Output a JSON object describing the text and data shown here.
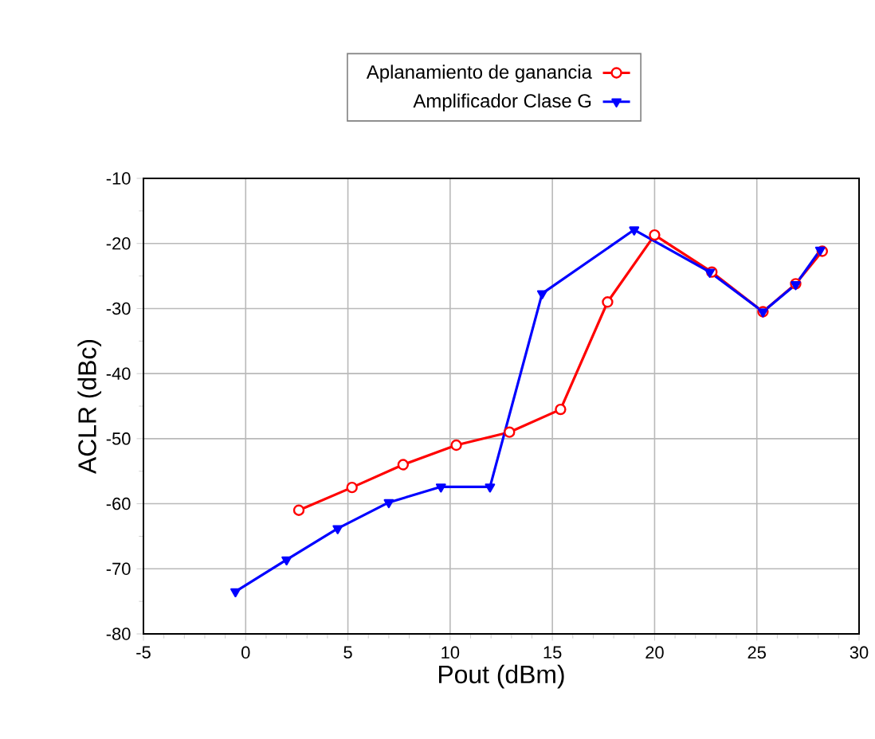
{
  "chart_data": {
    "type": "line",
    "xlabel": "Pout (dBm)",
    "ylabel": "ACLR (dBc)",
    "xlim": [
      -5,
      30
    ],
    "xticks": [
      -5,
      0,
      5,
      10,
      15,
      20,
      25,
      30
    ],
    "ylim": [
      -80,
      -10
    ],
    "yticks": [
      -80,
      -70,
      -60,
      -50,
      -40,
      -30,
      -20,
      -10
    ],
    "grid": true,
    "legend": "top",
    "series": [
      {
        "name": "Aplanamiento de ganancia",
        "color": "#ff0000",
        "marker": "circle",
        "x": [
          2.6,
          5.2,
          7.7,
          10.3,
          12.9,
          15.4,
          17.7,
          20.0,
          22.8,
          25.3,
          26.9,
          28.2
        ],
        "values": [
          -61,
          -57.5,
          -54,
          -51,
          -49,
          -45.5,
          -29,
          -18.7,
          -24.4,
          -30.5,
          -26.2,
          -21.2
        ]
      },
      {
        "name": "Amplificador Clase G",
        "color": "#0000ff",
        "marker": "triangle",
        "x": [
          -0.5,
          2.0,
          4.5,
          7.0,
          9.55,
          11.95,
          14.5,
          19.0,
          22.7,
          25.3,
          26.9,
          28.1
        ],
        "values": [
          -73.5,
          -68.6,
          -63.8,
          -59.8,
          -57.4,
          -57.4,
          -27.7,
          -17.9,
          -24.4,
          -30.5,
          -26.3,
          -21
        ]
      }
    ]
  }
}
